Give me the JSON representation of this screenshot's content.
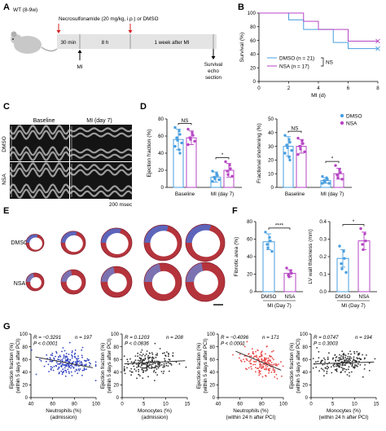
{
  "panels": {
    "A": {
      "label": "A",
      "mouse": "WT (8-9w)",
      "treatment": "Necrosulfonamide (20 mg/kg, i.p.) or DMSO",
      "segments": [
        "30 min",
        "8 h",
        "1 week after MI"
      ],
      "mi": "MI",
      "endpoints": [
        "Survival",
        "echo",
        "section"
      ]
    },
    "B": {
      "label": "B"
    },
    "C": {
      "label": "C",
      "baseline": "Baseline",
      "mi": "MI (day 7)",
      "rows": [
        "DMSO",
        "NSA"
      ],
      "scale": "200 msec"
    },
    "D": {
      "label": "D"
    },
    "E": {
      "label": "E",
      "rows": [
        "DMSO",
        "NSA"
      ]
    },
    "F": {
      "label": "F",
      "xgroup": "MI (Day 7)"
    },
    "G": {
      "label": "G"
    }
  },
  "colors": {
    "dmso": "#4a9fe0",
    "nsa": "#b646c4",
    "dmso_dark": "#2f7fc4"
  },
  "chart_data": [
    {
      "id": "B",
      "type": "line",
      "xlabel": "MI (d)",
      "ylabel": "Survival (%)",
      "xlim": [
        0,
        8
      ],
      "ylim": [
        0,
        100
      ],
      "xticks": [
        0,
        2,
        4,
        6,
        8
      ],
      "yticks": [
        0,
        20,
        40,
        60,
        80,
        100
      ],
      "series": [
        {
          "name": "DMSO",
          "n": "n = 21",
          "color": "#4a9fe0",
          "x": [
            0,
            2,
            2,
            3,
            3,
            5,
            5,
            6,
            6,
            8
          ],
          "y": [
            100,
            100,
            90,
            90,
            76,
            76,
            57,
            57,
            48,
            48
          ]
        },
        {
          "name": "NSA",
          "n": "n = 17",
          "color": "#b646c4",
          "x": [
            0,
            3,
            3,
            4,
            4,
            6,
            6,
            8
          ],
          "y": [
            100,
            100,
            88,
            88,
            76,
            76,
            59,
            59
          ]
        }
      ],
      "annotation": "NS"
    },
    {
      "id": "D1",
      "type": "bar",
      "ylabel": "Ejection fraction (%)",
      "ylim": [
        0,
        80
      ],
      "yticks": [
        0,
        20,
        40,
        60,
        80
      ],
      "categories": [
        "Baseline",
        "MI (day 7)"
      ],
      "series": [
        {
          "name": "DMSO",
          "values": [
            56,
            12
          ],
          "errors": [
            12,
            6
          ],
          "points": [
            [
              70,
              66,
              62,
              58,
              55,
              52,
              48,
              44,
              40
            ],
            [
              19,
              16,
              14,
              12,
              10,
              9,
              7
            ]
          ]
        },
        {
          "name": "NSA",
          "values": [
            58,
            20
          ],
          "errors": [
            8,
            8
          ],
          "points": [
            [
              68,
              64,
              61,
              58,
              56,
              54,
              50
            ],
            [
              30,
              26,
              22,
              19,
              15,
              13
            ]
          ]
        }
      ],
      "significance": [
        "NS",
        "*"
      ]
    },
    {
      "id": "D2",
      "type": "bar",
      "ylabel": "Fractional shortening (%)",
      "ylim": [
        0,
        50
      ],
      "yticks": [
        0,
        10,
        20,
        30,
        40,
        50
      ],
      "categories": [
        "Baseline",
        "MI (day 7)"
      ],
      "series": [
        {
          "name": "DMSO",
          "values": [
            30,
            5
          ],
          "errors": [
            7,
            2
          ],
          "points": [
            [
              38,
              35,
              33,
              31,
              29,
              27,
              25,
              22,
              20
            ],
            [
              8,
              7,
              6,
              5,
              4,
              3,
              3
            ]
          ]
        },
        {
          "name": "NSA",
          "values": [
            30,
            10
          ],
          "errors": [
            5,
            4
          ],
          "points": [
            [
              36,
              34,
              32,
              30,
              28,
              26,
              24
            ],
            [
              16,
              13,
              11,
              9,
              7,
              6
            ]
          ]
        }
      ],
      "significance": [
        "NS",
        "*"
      ],
      "legend": [
        "DMSO",
        "NSA"
      ]
    },
    {
      "id": "F1",
      "type": "bar",
      "ylabel": "Fibrotic area (%)",
      "ylim": [
        0,
        80
      ],
      "yticks": [
        0,
        20,
        40,
        60,
        80
      ],
      "categories": [
        "DMSO",
        "NSA"
      ],
      "values": [
        57,
        21
      ],
      "errors": [
        9,
        4
      ],
      "points": [
        [
          68,
          62,
          58,
          54,
          50,
          46
        ],
        [
          27,
          24,
          21,
          19,
          17
        ]
      ],
      "significance": "****"
    },
    {
      "id": "F2",
      "type": "bar",
      "ylabel": "LV wall thickness (mm)",
      "ylim": [
        0,
        0.4
      ],
      "yticks": [
        0.0,
        0.1,
        0.2,
        0.3,
        0.4
      ],
      "categories": [
        "DMSO",
        "NSA"
      ],
      "values": [
        0.19,
        0.29
      ],
      "errors": [
        0.05,
        0.05
      ],
      "points": [
        [
          0.26,
          0.23,
          0.19,
          0.16,
          0.13,
          0.11
        ],
        [
          0.36,
          0.33,
          0.29,
          0.27,
          0.24
        ]
      ],
      "significance": "*"
    },
    {
      "id": "G1",
      "type": "scatter",
      "color": "#2e3fbf",
      "xlabel": [
        "Neutrophils (%)",
        "(admission)"
      ],
      "ylabel": [
        "Ejection fraction (%)",
        "(within 5 days after PCI)"
      ],
      "xlim": [
        40,
        100
      ],
      "ylim": [
        0,
        100
      ],
      "xticks": [
        40,
        60,
        80,
        100
      ],
      "yticks": [
        0,
        20,
        40,
        60,
        80,
        100
      ],
      "stats": [
        "R = −0.3291",
        "n = 197",
        "P < 0.0001"
      ],
      "fit": [
        [
          44,
          64
        ],
        [
          97,
          47
        ]
      ],
      "n": 197,
      "center": [
        75,
        55
      ],
      "spread": [
        12,
        10
      ],
      "slope": -0.3,
      "seed": 11
    },
    {
      "id": "G2",
      "type": "scatter",
      "color": "#333333",
      "xlabel": [
        "Monocytes (%)",
        "(admission)"
      ],
      "ylabel": [
        "Ejection fraction (%)",
        "(within 5 days after PCI)"
      ],
      "xlim": [
        0,
        15
      ],
      "ylim": [
        0,
        100
      ],
      "xticks": [
        0,
        5,
        10,
        15
      ],
      "yticks": [
        0,
        20,
        40,
        60,
        80,
        100
      ],
      "stats": [
        "R = 0.1203",
        "n = 208",
        "P < 0.0836"
      ],
      "fit": [
        [
          0.5,
          53
        ],
        [
          14.5,
          58
        ]
      ],
      "n": 208,
      "center": [
        6,
        55
      ],
      "spread": [
        3,
        10
      ],
      "slope": 0.35,
      "seed": 23
    },
    {
      "id": "G3",
      "type": "scatter",
      "color": "#e84545",
      "xlabel": [
        "Neutrophils (%)",
        "(within 24 h after PCI)"
      ],
      "ylabel": [
        "Ejection fraction (%)",
        "(within 5 days after PCI)"
      ],
      "xlim": [
        40,
        100
      ],
      "ylim": [
        0,
        100
      ],
      "xticks": [
        40,
        60,
        80,
        100
      ],
      "yticks": [
        0,
        20,
        40,
        60,
        80,
        100
      ],
      "stats": [
        "R = −0.4096",
        "n = 171",
        "P < 0.0001"
      ],
      "fit": [
        [
          56,
          73
        ],
        [
          98,
          43
        ]
      ],
      "n": 171,
      "center": [
        80,
        55
      ],
      "spread": [
        9,
        10
      ],
      "slope": -0.65,
      "seed": 37
    },
    {
      "id": "G4",
      "type": "scatter",
      "color": "#333333",
      "xlabel": [
        "Monocytes (%)",
        "(within 24 h after PCI)"
      ],
      "ylabel": [
        "Ejection fraction (%)",
        "(within 5 days after PCI)"
      ],
      "xlim": [
        0,
        15
      ],
      "ylim": [
        0,
        100
      ],
      "xticks": [
        0,
        5,
        10,
        15
      ],
      "yticks": [
        0,
        20,
        40,
        60,
        80,
        100
      ],
      "stats": [
        "R = 0.0747",
        "n = 194",
        "P = 0.3003"
      ],
      "fit": [
        [
          0.5,
          53
        ],
        [
          14.5,
          56
        ]
      ],
      "n": 194,
      "center": [
        7,
        55
      ],
      "spread": [
        3.2,
        10
      ],
      "slope": 0.2,
      "seed": 51
    }
  ]
}
